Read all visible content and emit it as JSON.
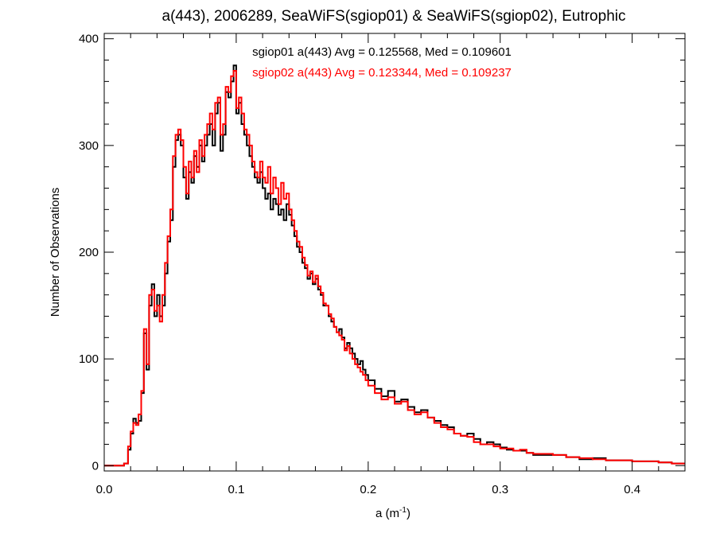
{
  "chart_data": {
    "type": "line",
    "step": true,
    "title": "a(443), 2006289, SeaWiFS(sgiop01) & SeaWiFS(sgiop02), Eutrophic",
    "xlabel": "a (m",
    "xlabel_sup": "-1",
    "xlabel_end": ")",
    "ylabel": "Number of Observations",
    "xlim": [
      0.0,
      0.44
    ],
    "ylim": [
      -5,
      405
    ],
    "xticks": [
      0.0,
      0.1,
      0.2,
      0.3,
      0.4
    ],
    "xtick_labels": [
      "0.0",
      "0.1",
      "0.2",
      "0.3",
      "0.4"
    ],
    "yticks": [
      0,
      100,
      200,
      300,
      400
    ],
    "ytick_labels": [
      "0",
      "100",
      "200",
      "300",
      "400"
    ],
    "grid": false,
    "legend_position": "top-center",
    "annotations": [
      {
        "text": "sgiop01 a(443) Avg = 0.125568, Med = 0.109601",
        "color": "#000000"
      },
      {
        "text": "sgiop02 a(443) Avg = 0.123344, Med = 0.109237",
        "color": "#ff0000"
      }
    ],
    "series": [
      {
        "name": "sgiop01",
        "color": "#000000",
        "x": [
          0.0,
          0.005,
          0.01,
          0.015,
          0.018,
          0.02,
          0.022,
          0.024,
          0.026,
          0.028,
          0.03,
          0.032,
          0.034,
          0.036,
          0.038,
          0.04,
          0.042,
          0.044,
          0.046,
          0.048,
          0.05,
          0.052,
          0.054,
          0.056,
          0.058,
          0.06,
          0.062,
          0.064,
          0.066,
          0.068,
          0.07,
          0.072,
          0.074,
          0.076,
          0.078,
          0.08,
          0.082,
          0.084,
          0.086,
          0.088,
          0.09,
          0.092,
          0.094,
          0.096,
          0.098,
          0.1,
          0.102,
          0.104,
          0.106,
          0.108,
          0.11,
          0.112,
          0.114,
          0.116,
          0.118,
          0.12,
          0.122,
          0.124,
          0.126,
          0.128,
          0.13,
          0.132,
          0.134,
          0.136,
          0.138,
          0.14,
          0.142,
          0.144,
          0.146,
          0.148,
          0.15,
          0.152,
          0.154,
          0.156,
          0.158,
          0.16,
          0.162,
          0.164,
          0.166,
          0.168,
          0.17,
          0.172,
          0.174,
          0.176,
          0.178,
          0.18,
          0.182,
          0.184,
          0.186,
          0.188,
          0.19,
          0.192,
          0.194,
          0.196,
          0.198,
          0.2,
          0.205,
          0.21,
          0.215,
          0.22,
          0.225,
          0.23,
          0.235,
          0.24,
          0.245,
          0.25,
          0.255,
          0.26,
          0.265,
          0.27,
          0.275,
          0.28,
          0.285,
          0.29,
          0.295,
          0.3,
          0.305,
          0.31,
          0.315,
          0.32,
          0.325,
          0.33,
          0.34,
          0.35,
          0.36,
          0.37,
          0.38,
          0.39,
          0.4,
          0.41,
          0.42,
          0.43,
          0.44
        ],
        "y": [
          0,
          0,
          0,
          2,
          15,
          30,
          44,
          40,
          42,
          68,
          124,
          90,
          150,
          170,
          140,
          160,
          140,
          150,
          180,
          210,
          230,
          280,
          305,
          310,
          300,
          270,
          250,
          275,
          265,
          290,
          280,
          300,
          285,
          300,
          310,
          320,
          300,
          330,
          340,
          295,
          310,
          350,
          345,
          360,
          375,
          330,
          340,
          320,
          310,
          300,
          290,
          280,
          270,
          265,
          275,
          260,
          250,
          255,
          240,
          250,
          245,
          235,
          240,
          230,
          245,
          235,
          225,
          215,
          205,
          200,
          190,
          185,
          175,
          180,
          170,
          175,
          165,
          160,
          150,
          150,
          140,
          135,
          130,
          125,
          128,
          120,
          110,
          115,
          110,
          105,
          100,
          95,
          98,
          90,
          85,
          80,
          72,
          65,
          70,
          60,
          62,
          55,
          50,
          52,
          45,
          42,
          38,
          36,
          30,
          28,
          30,
          25,
          20,
          22,
          20,
          17,
          15,
          14,
          14,
          12,
          10,
          10,
          10,
          8,
          6,
          7,
          5,
          5,
          4,
          4,
          3,
          2,
          2
        ]
      },
      {
        "name": "sgiop02",
        "color": "#ff0000",
        "x": [
          0.0,
          0.005,
          0.01,
          0.015,
          0.018,
          0.02,
          0.022,
          0.024,
          0.026,
          0.028,
          0.03,
          0.032,
          0.034,
          0.036,
          0.038,
          0.04,
          0.042,
          0.044,
          0.046,
          0.048,
          0.05,
          0.052,
          0.054,
          0.056,
          0.058,
          0.06,
          0.062,
          0.064,
          0.066,
          0.068,
          0.07,
          0.072,
          0.074,
          0.076,
          0.078,
          0.08,
          0.082,
          0.084,
          0.086,
          0.088,
          0.09,
          0.092,
          0.094,
          0.096,
          0.098,
          0.1,
          0.102,
          0.104,
          0.106,
          0.108,
          0.11,
          0.112,
          0.114,
          0.116,
          0.118,
          0.12,
          0.122,
          0.124,
          0.126,
          0.128,
          0.13,
          0.132,
          0.134,
          0.136,
          0.138,
          0.14,
          0.142,
          0.144,
          0.146,
          0.148,
          0.15,
          0.152,
          0.154,
          0.156,
          0.158,
          0.16,
          0.162,
          0.164,
          0.166,
          0.168,
          0.17,
          0.172,
          0.174,
          0.176,
          0.178,
          0.18,
          0.182,
          0.184,
          0.186,
          0.188,
          0.19,
          0.192,
          0.194,
          0.196,
          0.198,
          0.2,
          0.205,
          0.21,
          0.215,
          0.22,
          0.225,
          0.23,
          0.235,
          0.24,
          0.245,
          0.25,
          0.255,
          0.26,
          0.265,
          0.27,
          0.275,
          0.28,
          0.285,
          0.29,
          0.295,
          0.3,
          0.305,
          0.31,
          0.315,
          0.32,
          0.325,
          0.33,
          0.34,
          0.35,
          0.36,
          0.37,
          0.38,
          0.39,
          0.4,
          0.41,
          0.42,
          0.43,
          0.44
        ],
        "y": [
          0,
          0,
          0,
          2,
          18,
          32,
          40,
          38,
          48,
          70,
          128,
          95,
          160,
          165,
          145,
          150,
          135,
          160,
          190,
          215,
          240,
          290,
          310,
          315,
          305,
          280,
          255,
          285,
          270,
          295,
          275,
          305,
          290,
          310,
          320,
          330,
          315,
          340,
          345,
          310,
          320,
          355,
          350,
          365,
          370,
          335,
          345,
          330,
          315,
          310,
          300,
          285,
          275,
          270,
          285,
          270,
          265,
          280,
          255,
          270,
          260,
          245,
          265,
          250,
          255,
          240,
          230,
          220,
          210,
          205,
          195,
          188,
          178,
          182,
          172,
          178,
          168,
          162,
          152,
          150,
          142,
          138,
          130,
          125,
          122,
          118,
          108,
          112,
          105,
          100,
          95,
          92,
          88,
          85,
          80,
          75,
          68,
          62,
          64,
          58,
          60,
          52,
          48,
          50,
          45,
          40,
          36,
          34,
          30,
          28,
          27,
          22,
          20,
          20,
          18,
          16,
          16,
          14,
          15,
          12,
          11,
          11,
          10,
          8,
          7,
          6,
          5,
          5,
          4,
          4,
          3,
          2,
          2
        ]
      }
    ]
  }
}
